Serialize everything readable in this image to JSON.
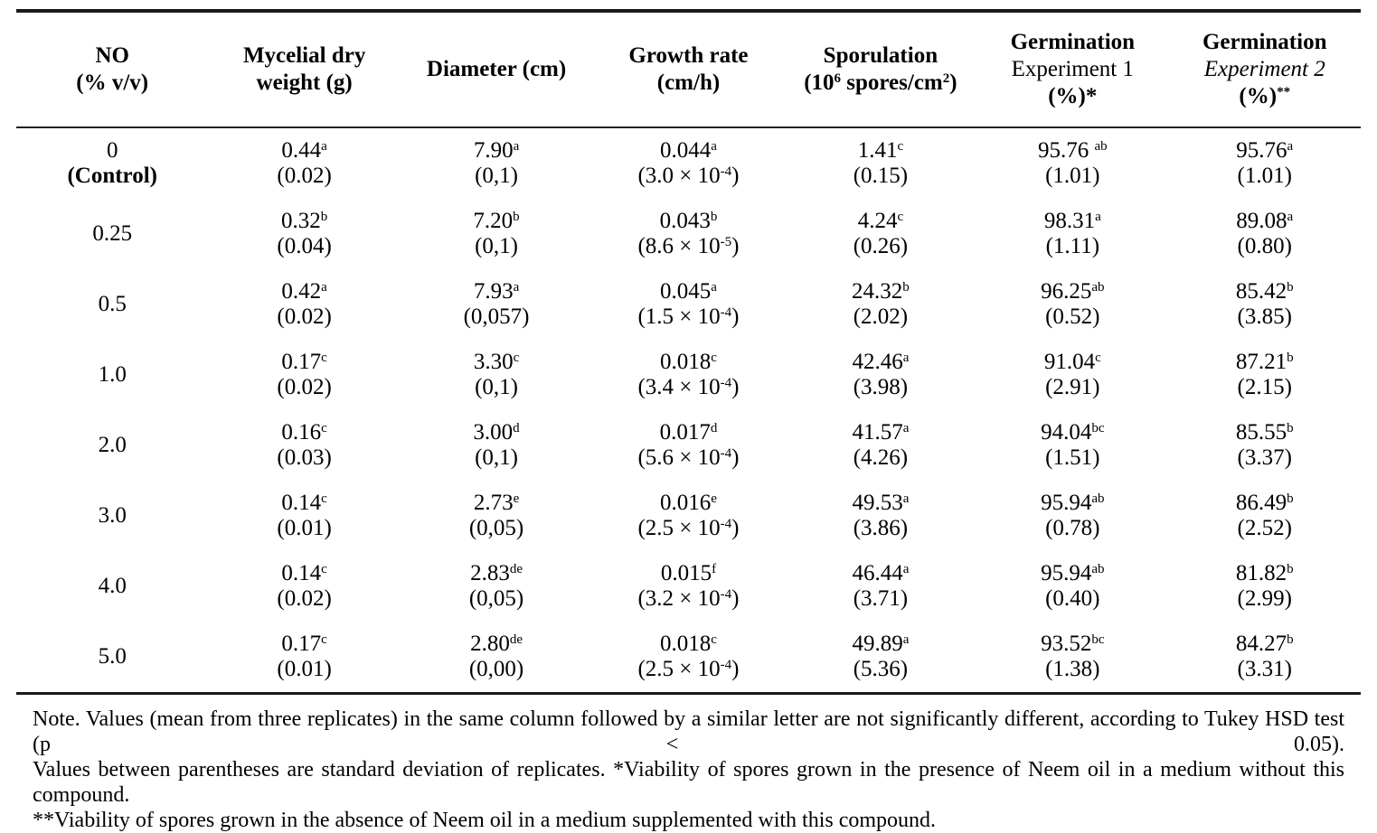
{
  "colors": {
    "background": "#ffffff",
    "text": "#000000",
    "rule": "#1a1a1a"
  },
  "table": {
    "headers": [
      {
        "lines": [
          [
            {
              "t": "NO",
              "b": true
            }
          ],
          [
            {
              "t": "(% v/v)",
              "b": true
            }
          ]
        ]
      },
      {
        "lines": [
          [
            {
              "t": "Mycelial dry",
              "b": true
            }
          ],
          [
            {
              "t": "weight (g)",
              "b": true
            }
          ]
        ]
      },
      {
        "lines": [
          [
            {
              "t": "Diameter (cm)",
              "b": true
            }
          ]
        ]
      },
      {
        "lines": [
          [
            {
              "t": "Growth rate",
              "b": true
            }
          ],
          [
            {
              "t": "(cm/h)",
              "b": true
            }
          ]
        ]
      },
      {
        "lines": [
          [
            {
              "t": "Sporulation",
              "b": true
            }
          ],
          [
            {
              "t": "(10",
              "b": true
            },
            {
              "t": "6",
              "b": true,
              "sup": true
            },
            {
              "t": " spores/cm",
              "b": true
            },
            {
              "t": "2",
              "b": true,
              "sup": true
            },
            {
              "t": ")",
              "b": true
            }
          ]
        ]
      },
      {
        "lines": [
          [
            {
              "t": "Germination",
              "b": true
            }
          ],
          [
            {
              "t": "Experiment 1"
            }
          ],
          [
            {
              "t": "(%)*",
              "b": true
            }
          ]
        ]
      },
      {
        "lines": [
          [
            {
              "t": "Germination",
              "b": true
            }
          ],
          [
            {
              "t": "Experiment 2",
              "i": true
            }
          ],
          [
            {
              "t": "(%)",
              "b": true
            },
            {
              "t": "**",
              "b": true,
              "sup": true
            }
          ]
        ]
      }
    ],
    "rows": [
      {
        "cells": [
          [
            [
              {
                "t": "0"
              }
            ],
            [
              {
                "t": "(Control)",
                "b": true
              }
            ]
          ],
          [
            [
              {
                "t": "0.44"
              },
              {
                "t": "a",
                "sup": true
              }
            ],
            [
              {
                "t": "(0.02)"
              }
            ]
          ],
          [
            [
              {
                "t": "7.90"
              },
              {
                "t": "a",
                "sup": true
              }
            ],
            [
              {
                "t": "(0,1)"
              }
            ]
          ],
          [
            [
              {
                "t": "0.044"
              },
              {
                "t": "a",
                "sup": true
              }
            ],
            [
              {
                "t": "(3.0 × 10"
              },
              {
                "t": "-4",
                "sup": true
              },
              {
                "t": ")"
              }
            ]
          ],
          [
            [
              {
                "t": "1.41"
              },
              {
                "t": "c",
                "sup": true
              }
            ],
            [
              {
                "t": "(0.15)"
              }
            ]
          ],
          [
            [
              {
                "t": "95.76 "
              },
              {
                "t": "ab",
                "sup": true
              }
            ],
            [
              {
                "t": "(1.01)"
              }
            ]
          ],
          [
            [
              {
                "t": "95.76"
              },
              {
                "t": "a",
                "sup": true
              }
            ],
            [
              {
                "t": "(1.01)"
              }
            ]
          ]
        ]
      },
      {
        "cells": [
          [
            [
              {
                "t": "0.25"
              }
            ]
          ],
          [
            [
              {
                "t": "0.32"
              },
              {
                "t": "b",
                "sup": true
              }
            ],
            [
              {
                "t": "(0.04)"
              }
            ]
          ],
          [
            [
              {
                "t": "7.20"
              },
              {
                "t": "b",
                "sup": true
              }
            ],
            [
              {
                "t": "(0,1)"
              }
            ]
          ],
          [
            [
              {
                "t": "0.043"
              },
              {
                "t": "b",
                "sup": true
              }
            ],
            [
              {
                "t": "(8.6 × 10"
              },
              {
                "t": "-5",
                "sup": true
              },
              {
                "t": ")"
              }
            ]
          ],
          [
            [
              {
                "t": "4.24"
              },
              {
                "t": "c",
                "sup": true
              }
            ],
            [
              {
                "t": "(0.26)"
              }
            ]
          ],
          [
            [
              {
                "t": "98.31"
              },
              {
                "t": "a",
                "sup": true
              }
            ],
            [
              {
                "t": "(1.11)"
              }
            ]
          ],
          [
            [
              {
                "t": "89.08"
              },
              {
                "t": "a",
                "sup": true
              }
            ],
            [
              {
                "t": "(0.80)"
              }
            ]
          ]
        ]
      },
      {
        "cells": [
          [
            [
              {
                "t": "0.5"
              }
            ]
          ],
          [
            [
              {
                "t": "0.42"
              },
              {
                "t": "a",
                "sup": true
              }
            ],
            [
              {
                "t": "(0.02)"
              }
            ]
          ],
          [
            [
              {
                "t": "7.93"
              },
              {
                "t": "a",
                "sup": true
              }
            ],
            [
              {
                "t": "(0,057)"
              }
            ]
          ],
          [
            [
              {
                "t": "0.045"
              },
              {
                "t": "a",
                "sup": true
              }
            ],
            [
              {
                "t": "(1.5 × 10"
              },
              {
                "t": "-4",
                "sup": true
              },
              {
                "t": ")"
              }
            ]
          ],
          [
            [
              {
                "t": "24.32"
              },
              {
                "t": "b",
                "sup": true
              }
            ],
            [
              {
                "t": "(2.02)"
              }
            ]
          ],
          [
            [
              {
                "t": "96.25"
              },
              {
                "t": "ab",
                "sup": true
              }
            ],
            [
              {
                "t": "(0.52)"
              }
            ]
          ],
          [
            [
              {
                "t": "85.42"
              },
              {
                "t": "b",
                "sup": true
              }
            ],
            [
              {
                "t": "(3.85)"
              }
            ]
          ]
        ]
      },
      {
        "cells": [
          [
            [
              {
                "t": "1.0"
              }
            ]
          ],
          [
            [
              {
                "t": "0.17"
              },
              {
                "t": "c",
                "sup": true
              }
            ],
            [
              {
                "t": "(0.02)"
              }
            ]
          ],
          [
            [
              {
                "t": "3.30"
              },
              {
                "t": "c",
                "sup": true
              }
            ],
            [
              {
                "t": "(0,1)"
              }
            ]
          ],
          [
            [
              {
                "t": "0.018"
              },
              {
                "t": "c",
                "sup": true
              }
            ],
            [
              {
                "t": "(3.4 × 10"
              },
              {
                "t": "-4",
                "sup": true
              },
              {
                "t": ")"
              }
            ]
          ],
          [
            [
              {
                "t": "42.46"
              },
              {
                "t": "a",
                "sup": true
              }
            ],
            [
              {
                "t": "(3.98)"
              }
            ]
          ],
          [
            [
              {
                "t": "91.04"
              },
              {
                "t": "c",
                "sup": true
              }
            ],
            [
              {
                "t": "(2.91)"
              }
            ]
          ],
          [
            [
              {
                "t": "87.21"
              },
              {
                "t": "b",
                "sup": true
              }
            ],
            [
              {
                "t": "(2.15)"
              }
            ]
          ]
        ]
      },
      {
        "cells": [
          [
            [
              {
                "t": "2.0"
              }
            ]
          ],
          [
            [
              {
                "t": "0.16"
              },
              {
                "t": "c",
                "sup": true
              }
            ],
            [
              {
                "t": "(0.03)"
              }
            ]
          ],
          [
            [
              {
                "t": "3.00"
              },
              {
                "t": "d",
                "sup": true
              }
            ],
            [
              {
                "t": "(0,1)"
              }
            ]
          ],
          [
            [
              {
                "t": "0.017"
              },
              {
                "t": "d",
                "sup": true
              }
            ],
            [
              {
                "t": "(5.6 × 10"
              },
              {
                "t": "-4",
                "sup": true
              },
              {
                "t": ")"
              }
            ]
          ],
          [
            [
              {
                "t": "41.57"
              },
              {
                "t": "a",
                "sup": true
              }
            ],
            [
              {
                "t": "(4.26)"
              }
            ]
          ],
          [
            [
              {
                "t": "94.04"
              },
              {
                "t": "bc",
                "sup": true
              }
            ],
            [
              {
                "t": "(1.51)"
              }
            ]
          ],
          [
            [
              {
                "t": "85.55"
              },
              {
                "t": "b",
                "sup": true
              }
            ],
            [
              {
                "t": "(3.37)"
              }
            ]
          ]
        ]
      },
      {
        "cells": [
          [
            [
              {
                "t": "3.0"
              }
            ]
          ],
          [
            [
              {
                "t": "0.14"
              },
              {
                "t": "c",
                "sup": true
              }
            ],
            [
              {
                "t": "(0.01)"
              }
            ]
          ],
          [
            [
              {
                "t": "2.73"
              },
              {
                "t": "e",
                "sup": true
              }
            ],
            [
              {
                "t": "(0,05)"
              }
            ]
          ],
          [
            [
              {
                "t": "0.016"
              },
              {
                "t": "e",
                "sup": true
              }
            ],
            [
              {
                "t": "(2.5 × 10"
              },
              {
                "t": "-4",
                "sup": true
              },
              {
                "t": ")"
              }
            ]
          ],
          [
            [
              {
                "t": "49.53"
              },
              {
                "t": "a",
                "sup": true
              }
            ],
            [
              {
                "t": "(3.86)"
              }
            ]
          ],
          [
            [
              {
                "t": "95.94"
              },
              {
                "t": "ab",
                "sup": true
              }
            ],
            [
              {
                "t": "(0.78)"
              }
            ]
          ],
          [
            [
              {
                "t": "86.49"
              },
              {
                "t": "b",
                "sup": true
              }
            ],
            [
              {
                "t": "(2.52)"
              }
            ]
          ]
        ]
      },
      {
        "cells": [
          [
            [
              {
                "t": "4.0"
              }
            ]
          ],
          [
            [
              {
                "t": "0.14"
              },
              {
                "t": "c",
                "sup": true
              }
            ],
            [
              {
                "t": "(0.02)"
              }
            ]
          ],
          [
            [
              {
                "t": "2.83"
              },
              {
                "t": "de",
                "sup": true
              }
            ],
            [
              {
                "t": "(0,05)"
              }
            ]
          ],
          [
            [
              {
                "t": "0.015"
              },
              {
                "t": "f",
                "sup": true
              }
            ],
            [
              {
                "t": "(3.2 × 10"
              },
              {
                "t": "-4",
                "sup": true
              },
              {
                "t": ")"
              }
            ]
          ],
          [
            [
              {
                "t": "46.44"
              },
              {
                "t": "a",
                "sup": true
              }
            ],
            [
              {
                "t": "(3.71)"
              }
            ]
          ],
          [
            [
              {
                "t": "95.94"
              },
              {
                "t": "ab",
                "sup": true
              }
            ],
            [
              {
                "t": "(0.40)"
              }
            ]
          ],
          [
            [
              {
                "t": "81.82"
              },
              {
                "t": "b",
                "sup": true
              }
            ],
            [
              {
                "t": "(2.99)"
              }
            ]
          ]
        ]
      },
      {
        "cells": [
          [
            [
              {
                "t": "5.0"
              }
            ]
          ],
          [
            [
              {
                "t": "0.17"
              },
              {
                "t": "c",
                "sup": true
              }
            ],
            [
              {
                "t": "(0.01)"
              }
            ]
          ],
          [
            [
              {
                "t": "2.80"
              },
              {
                "t": "de",
                "sup": true
              }
            ],
            [
              {
                "t": "(0,00)"
              }
            ]
          ],
          [
            [
              {
                "t": "0.018"
              },
              {
                "t": "c",
                "sup": true
              }
            ],
            [
              {
                "t": "(2.5 × 10"
              },
              {
                "t": "-4",
                "sup": true
              },
              {
                "t": ")"
              }
            ]
          ],
          [
            [
              {
                "t": "49.89"
              },
              {
                "t": "a",
                "sup": true
              }
            ],
            [
              {
                "t": "(5.36)"
              }
            ]
          ],
          [
            [
              {
                "t": "93.52"
              },
              {
                "t": "bc",
                "sup": true
              }
            ],
            [
              {
                "t": "(1.38)"
              }
            ]
          ],
          [
            [
              {
                "t": "84.27"
              },
              {
                "t": "b",
                "sup": true
              }
            ],
            [
              {
                "t": "(3.31)"
              }
            ]
          ]
        ]
      }
    ]
  },
  "note": {
    "lines": [
      "Note. Values (mean from three replicates) in the same column followed by a similar letter are not significantly different, according to Tukey HSD test (p < 0.05).",
      "Values between parentheses are standard deviation of replicates. *Viability of spores grown in the presence of Neem oil in a medium without this compound.",
      "**Viability of spores grown in the absence of Neem oil in a medium supplemented with this compound."
    ]
  }
}
